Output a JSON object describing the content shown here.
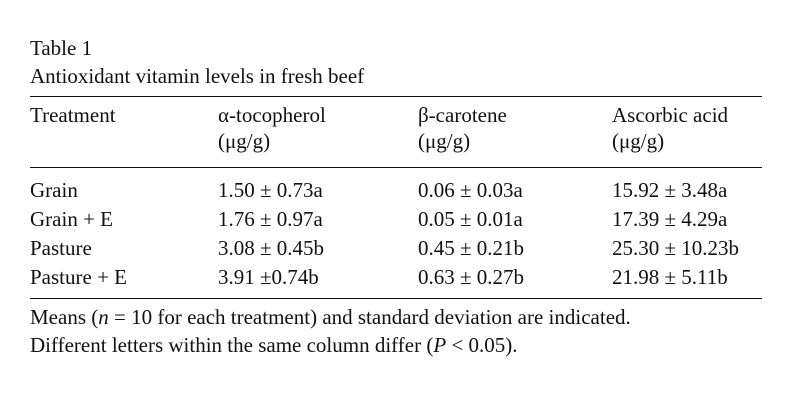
{
  "table": {
    "label": "Table 1",
    "title": "Antioxidant vitamin levels in fresh beef",
    "columns": [
      {
        "name": "Treatment",
        "unit": ""
      },
      {
        "name": "α-tocopherol",
        "unit": "(μg/g)"
      },
      {
        "name": "β-carotene",
        "unit": "(μg/g)"
      },
      {
        "name": "Ascorbic acid",
        "unit": "(μg/g)"
      }
    ],
    "rows": [
      {
        "treatment": "Grain",
        "tocopherol": "1.50 ± 0.73a",
        "carotene": "0.06 ± 0.03a",
        "ascorbic": "15.92 ± 3.48a"
      },
      {
        "treatment": "Grain + E",
        "tocopherol": "1.76 ± 0.97a",
        "carotene": "0.05 ± 0.01a",
        "ascorbic": "17.39 ± 4.29a"
      },
      {
        "treatment": "Pasture",
        "tocopherol": "3.08 ± 0.45b",
        "carotene": "0.45 ± 0.21b",
        "ascorbic": "25.30 ± 10.23b"
      },
      {
        "treatment": "Pasture + E",
        "tocopherol": "3.91 ±0.74b",
        "carotene": "0.63 ± 0.27b",
        "ascorbic": "21.98 ± 5.11b"
      }
    ],
    "footnote": {
      "line1_a": "Means (",
      "line1_n": "n",
      "line1_b": " = 10 for each treatment) and standard deviation are indicated.",
      "line2_a": "Different letters within the same column differ (",
      "line2_p": "P",
      "line2_b": " < 0.05)."
    }
  }
}
